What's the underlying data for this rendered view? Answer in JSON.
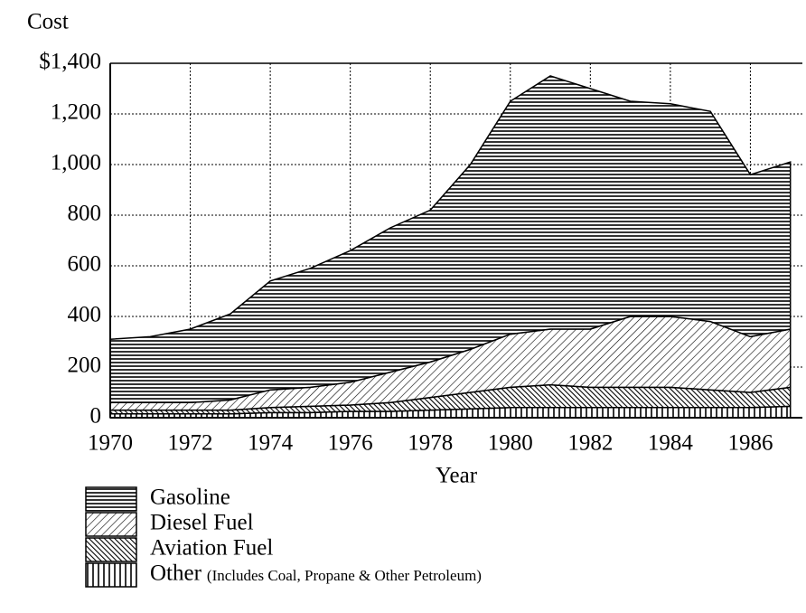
{
  "chart_data": {
    "type": "stacked-area",
    "y_label": "Cost",
    "x_label": "Year",
    "x": [
      1970,
      1971,
      1972,
      1973,
      1974,
      1975,
      1976,
      1977,
      1978,
      1979,
      1980,
      1981,
      1982,
      1983,
      1984,
      1985,
      1986,
      1987
    ],
    "series": [
      {
        "name": "Gasoline",
        "color": "#000000",
        "pattern": "horizontal",
        "values": [
          250,
          260,
          290,
          340,
          430,
          470,
          520,
          570,
          600,
          730,
          920,
          1000,
          950,
          850,
          840,
          830,
          640,
          660
        ]
      },
      {
        "name": "Diesel Fuel",
        "color": "#000000",
        "pattern": "diagonal-down",
        "values": [
          30,
          30,
          30,
          40,
          70,
          75,
          90,
          120,
          140,
          170,
          210,
          220,
          230,
          280,
          280,
          270,
          220,
          230
        ]
      },
      {
        "name": "Aviation Fuel",
        "color": "#000000",
        "pattern": "diagonal-up",
        "values": [
          15,
          15,
          15,
          15,
          20,
          25,
          25,
          35,
          50,
          65,
          80,
          90,
          80,
          80,
          80,
          70,
          60,
          75
        ]
      },
      {
        "name": "Other",
        "color": "#000000",
        "pattern": "vertical",
        "values": [
          15,
          15,
          15,
          15,
          20,
          20,
          25,
          25,
          30,
          35,
          40,
          40,
          40,
          40,
          40,
          40,
          40,
          45
        ]
      }
    ],
    "legend_note": "(Includes Coal, Propane & Other Petroleum)",
    "xlim": [
      1970,
      1987.3
    ],
    "xticks": [
      1970,
      1972,
      1974,
      1976,
      1978,
      1980,
      1982,
      1984,
      1986
    ],
    "ylim": [
      0,
      1400
    ],
    "yticks": [
      {
        "value": 1400,
        "label": "$1,400"
      },
      {
        "value": 1200,
        "label": "1,200"
      },
      {
        "value": 1000,
        "label": "1,000"
      },
      800,
      600,
      400,
      200,
      0
    ],
    "grid": true,
    "stacked": true
  }
}
